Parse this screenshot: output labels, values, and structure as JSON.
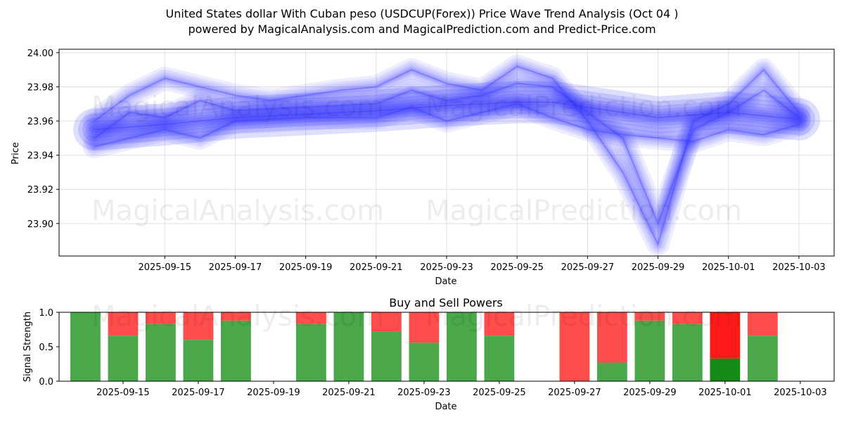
{
  "header": {
    "title": "United States dollar With Cuban peso (USDCUP(Forex)) Price Wave Trend Analysis (Oct 04 )",
    "subtitle": "powered by MagicalAnalysis.com and MagicalPrediction.com and Predict-Price.com"
  },
  "watermarks": [
    "MagicalAnalysis.com",
    "MagicalPrediction.com"
  ],
  "colors": {
    "wave": "#3333ff",
    "buy": "#4aa84a",
    "sell": "#ff4d4d",
    "buy_strong": "#168a16",
    "sell_strong": "#ff1a1a",
    "grid": "#e0e0e0"
  },
  "chart_data": [
    {
      "type": "area",
      "title": "",
      "xlabel": "Date",
      "ylabel": "Price",
      "xlim": [
        "2025-09-12",
        "2025-10-04"
      ],
      "ylim": [
        23.881,
        24.002
      ],
      "grid": true,
      "x_ticks": [
        "2025-09-15",
        "2025-09-17",
        "2025-09-19",
        "2025-09-21",
        "2025-09-23",
        "2025-09-25",
        "2025-09-27",
        "2025-09-29",
        "2025-10-01",
        "2025-10-03"
      ],
      "y_ticks": [
        "23.90",
        "23.92",
        "23.94",
        "23.96",
        "23.98",
        "24.00"
      ],
      "series": [
        {
          "x": [
            "2025-09-13",
            "2025-09-15",
            "2025-09-17",
            "2025-09-19",
            "2025-09-21",
            "2025-09-23",
            "2025-09-25",
            "2025-09-26",
            "2025-09-27",
            "2025-09-29",
            "2025-10-01",
            "2025-10-03"
          ],
          "y": [
            23.955,
            23.958,
            23.962,
            23.964,
            23.966,
            23.969,
            23.971,
            23.971,
            23.968,
            23.962,
            23.965,
            23.961
          ]
        },
        {
          "x": [
            "2025-09-13",
            "2025-09-14",
            "2025-09-15",
            "2025-09-16",
            "2025-09-17",
            "2025-09-19",
            "2025-09-21",
            "2025-09-22",
            "2025-09-23",
            "2025-09-24",
            "2025-09-25",
            "2025-09-26",
            "2025-09-27",
            "2025-09-28",
            "2025-09-29",
            "2025-09-30",
            "2025-10-01",
            "2025-10-02",
            "2025-10-03"
          ],
          "y": [
            23.95,
            23.965,
            23.962,
            23.972,
            23.966,
            23.968,
            23.97,
            23.978,
            23.972,
            23.975,
            23.982,
            23.98,
            23.965,
            23.95,
            23.9,
            23.955,
            23.965,
            23.978,
            23.962
          ]
        },
        {
          "x": [
            "2025-09-13",
            "2025-09-14",
            "2025-09-15",
            "2025-09-17",
            "2025-09-18",
            "2025-09-20",
            "2025-09-21",
            "2025-09-22",
            "2025-09-23",
            "2025-09-24",
            "2025-09-25",
            "2025-09-26",
            "2025-09-27",
            "2025-09-28",
            "2025-09-29",
            "2025-09-30",
            "2025-10-01",
            "2025-10-02",
            "2025-10-03"
          ],
          "y": [
            23.96,
            23.975,
            23.985,
            23.975,
            23.972,
            23.978,
            23.98,
            23.99,
            23.982,
            23.978,
            23.992,
            23.985,
            23.96,
            23.93,
            23.888,
            23.96,
            23.97,
            23.99,
            23.965
          ]
        },
        {
          "x": [
            "2025-09-13",
            "2025-09-15",
            "2025-09-16",
            "2025-09-17",
            "2025-09-19",
            "2025-09-21",
            "2025-09-22",
            "2025-09-23",
            "2025-09-24",
            "2025-09-25",
            "2025-09-26",
            "2025-09-27",
            "2025-09-28",
            "2025-09-29",
            "2025-09-30",
            "2025-10-01",
            "2025-10-02",
            "2025-10-03"
          ],
          "y": [
            23.945,
            23.955,
            23.95,
            23.96,
            23.962,
            23.962,
            23.968,
            23.96,
            23.965,
            23.97,
            23.962,
            23.955,
            23.952,
            23.95,
            23.948,
            23.955,
            23.952,
            23.958
          ]
        }
      ]
    },
    {
      "type": "bar",
      "title": "Buy and Sell Powers",
      "xlabel": "Date",
      "ylabel": "Signal Strength",
      "xlim": [
        "2025-09-13.3",
        "2025-10-03.9"
      ],
      "ylim": [
        0,
        1.0
      ],
      "x_ticks": [
        "2025-09-15",
        "2025-09-17",
        "2025-09-19",
        "2025-09-21",
        "2025-09-23",
        "2025-09-25",
        "2025-09-27",
        "2025-09-29",
        "2025-10-01",
        "2025-10-03"
      ],
      "y_ticks": [
        "0.0",
        "0.5",
        "1.0"
      ],
      "categories": [
        "2025-09-14",
        "2025-09-15",
        "2025-09-16",
        "2025-09-17",
        "2025-09-18",
        "2025-09-20",
        "2025-09-21",
        "2025-09-22",
        "2025-09-23",
        "2025-09-24",
        "2025-09-25",
        "2025-09-27",
        "2025-09-28",
        "2025-09-29",
        "2025-09-30",
        "2025-10-01",
        "2025-10-02"
      ],
      "series": [
        {
          "name": "Buy",
          "values": [
            1.0,
            0.66,
            0.83,
            0.6,
            0.88,
            0.83,
            1.0,
            0.72,
            0.56,
            1.0,
            0.66,
            0.0,
            0.27,
            0.88,
            0.83,
            0.33,
            0.66
          ]
        },
        {
          "name": "Sell",
          "values": [
            0.0,
            0.34,
            0.17,
            0.4,
            0.12,
            0.17,
            0.0,
            0.28,
            0.44,
            0.0,
            0.34,
            1.0,
            0.73,
            0.12,
            0.17,
            0.67,
            0.34
          ]
        }
      ],
      "strong_index": 15
    }
  ]
}
